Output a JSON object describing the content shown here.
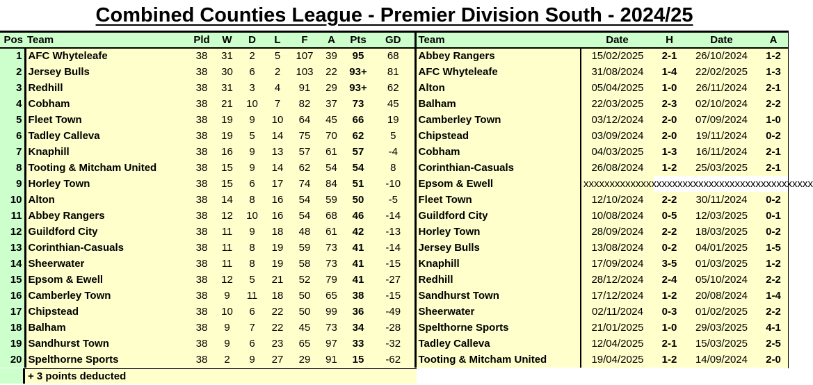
{
  "title": "Combined Counties League - Premier Division South - 2024/25",
  "table_headers": [
    "Pos",
    "Team",
    "Pld",
    "W",
    "D",
    "L",
    "F",
    "A",
    "Pts",
    "GD"
  ],
  "results_headers": [
    "Team",
    "Date",
    "H",
    "Date",
    "A"
  ],
  "standings": [
    [
      "1",
      "AFC Whyteleafe",
      "38",
      "31",
      "2",
      "5",
      "107",
      "39",
      "95",
      "68"
    ],
    [
      "2",
      "Jersey Bulls",
      "38",
      "30",
      "6",
      "2",
      "103",
      "22",
      "93+",
      "81"
    ],
    [
      "3",
      "Redhill",
      "38",
      "31",
      "3",
      "4",
      "91",
      "29",
      "93+",
      "62"
    ],
    [
      "4",
      "Cobham",
      "38",
      "21",
      "10",
      "7",
      "82",
      "37",
      "73",
      "45"
    ],
    [
      "5",
      "Fleet Town",
      "38",
      "19",
      "9",
      "10",
      "64",
      "45",
      "66",
      "19"
    ],
    [
      "6",
      "Tadley Calleva",
      "38",
      "19",
      "5",
      "14",
      "75",
      "70",
      "62",
      "5"
    ],
    [
      "7",
      "Knaphill",
      "38",
      "16",
      "9",
      "13",
      "57",
      "61",
      "57",
      "-4"
    ],
    [
      "8",
      "Tooting & Mitcham United",
      "38",
      "15",
      "9",
      "14",
      "62",
      "54",
      "54",
      "8"
    ],
    [
      "9",
      "Horley Town",
      "38",
      "15",
      "6",
      "17",
      "74",
      "84",
      "51",
      "-10"
    ],
    [
      "10",
      "Alton",
      "38",
      "14",
      "8",
      "16",
      "54",
      "59",
      "50",
      "-5"
    ],
    [
      "11",
      "Abbey Rangers",
      "38",
      "12",
      "10",
      "16",
      "54",
      "68",
      "46",
      "-14"
    ],
    [
      "12",
      "Guildford City",
      "38",
      "11",
      "9",
      "18",
      "48",
      "61",
      "42",
      "-13"
    ],
    [
      "13",
      "Corinthian-Casuals",
      "38",
      "11",
      "8",
      "19",
      "59",
      "73",
      "41",
      "-14"
    ],
    [
      "14",
      "Sheerwater",
      "38",
      "11",
      "8",
      "19",
      "58",
      "73",
      "41",
      "-15"
    ],
    [
      "15",
      "Epsom & Ewell",
      "38",
      "12",
      "5",
      "21",
      "52",
      "79",
      "41",
      "-27"
    ],
    [
      "16",
      "Camberley Town",
      "38",
      "9",
      "11",
      "18",
      "50",
      "65",
      "38",
      "-15"
    ],
    [
      "17",
      "Chipstead",
      "38",
      "10",
      "6",
      "22",
      "50",
      "99",
      "36",
      "-49"
    ],
    [
      "18",
      "Balham",
      "38",
      "9",
      "7",
      "22",
      "45",
      "73",
      "34",
      "-28"
    ],
    [
      "19",
      "Sandhurst Town",
      "38",
      "9",
      "6",
      "23",
      "65",
      "97",
      "33",
      "-32"
    ],
    [
      "20",
      "Spelthorne Sports",
      "38",
      "2",
      "9",
      "27",
      "29",
      "91",
      "15",
      "-62"
    ]
  ],
  "results": [
    [
      "Abbey Rangers",
      "15/02/2025",
      "2-1",
      "26/10/2024",
      "1-2"
    ],
    [
      "AFC Whyteleafe",
      "31/08/2024",
      "1-4",
      "22/02/2025",
      "1-3"
    ],
    [
      "Alton",
      "05/04/2025",
      "1-0",
      "26/11/2024",
      "2-1"
    ],
    [
      "Balham",
      "22/03/2025",
      "2-3",
      "02/10/2024",
      "2-2"
    ],
    [
      "Camberley Town",
      "03/12/2024",
      "2-0",
      "07/09/2024",
      "1-0"
    ],
    [
      "Chipstead",
      "03/09/2024",
      "2-0",
      "19/11/2024",
      "0-2"
    ],
    [
      "Cobham",
      "04/03/2025",
      "1-3",
      "16/11/2024",
      "2-1"
    ],
    [
      "Corinthian-Casuals",
      "26/08/2024",
      "1-2",
      "25/03/2025",
      "2-1"
    ],
    [
      "Epsom & Ewell",
      "xxxxxxxxxxxxxxxxxxxxxxxxxxxxxxxxxxxxxxxxxxxx"
    ],
    [
      "Fleet Town",
      "12/10/2024",
      "2-2",
      "30/11/2024",
      "0-2"
    ],
    [
      "Guildford City",
      "10/08/2024",
      "0-5",
      "12/03/2025",
      "0-1"
    ],
    [
      "Horley Town",
      "28/09/2024",
      "2-2",
      "18/03/2025",
      "0-2"
    ],
    [
      "Jersey Bulls",
      "13/08/2024",
      "0-2",
      "04/01/2025",
      "1-5"
    ],
    [
      "Knaphill",
      "17/09/2024",
      "3-5",
      "01/03/2025",
      "1-2"
    ],
    [
      "Redhill",
      "28/12/2024",
      "2-4",
      "05/10/2024",
      "2-2"
    ],
    [
      "Sandhurst Town",
      "17/12/2024",
      "1-2",
      "20/08/2024",
      "1-4"
    ],
    [
      "Sheerwater",
      "02/11/2024",
      "0-3",
      "01/02/2025",
      "2-2"
    ],
    [
      "Spelthorne Sports",
      "21/01/2025",
      "1-0",
      "29/03/2025",
      "4-1"
    ],
    [
      "Tadley Calleva",
      "12/04/2025",
      "2-1",
      "15/03/2025",
      "2-5"
    ],
    [
      "Tooting & Mitcham United",
      "19/04/2025",
      "1-2",
      "14/09/2024",
      "2-0"
    ]
  ],
  "footnote": "+ 3 points deducted",
  "colors": {
    "header_bg": "#ccffcc",
    "cell_bg": "#ffffcc"
  }
}
